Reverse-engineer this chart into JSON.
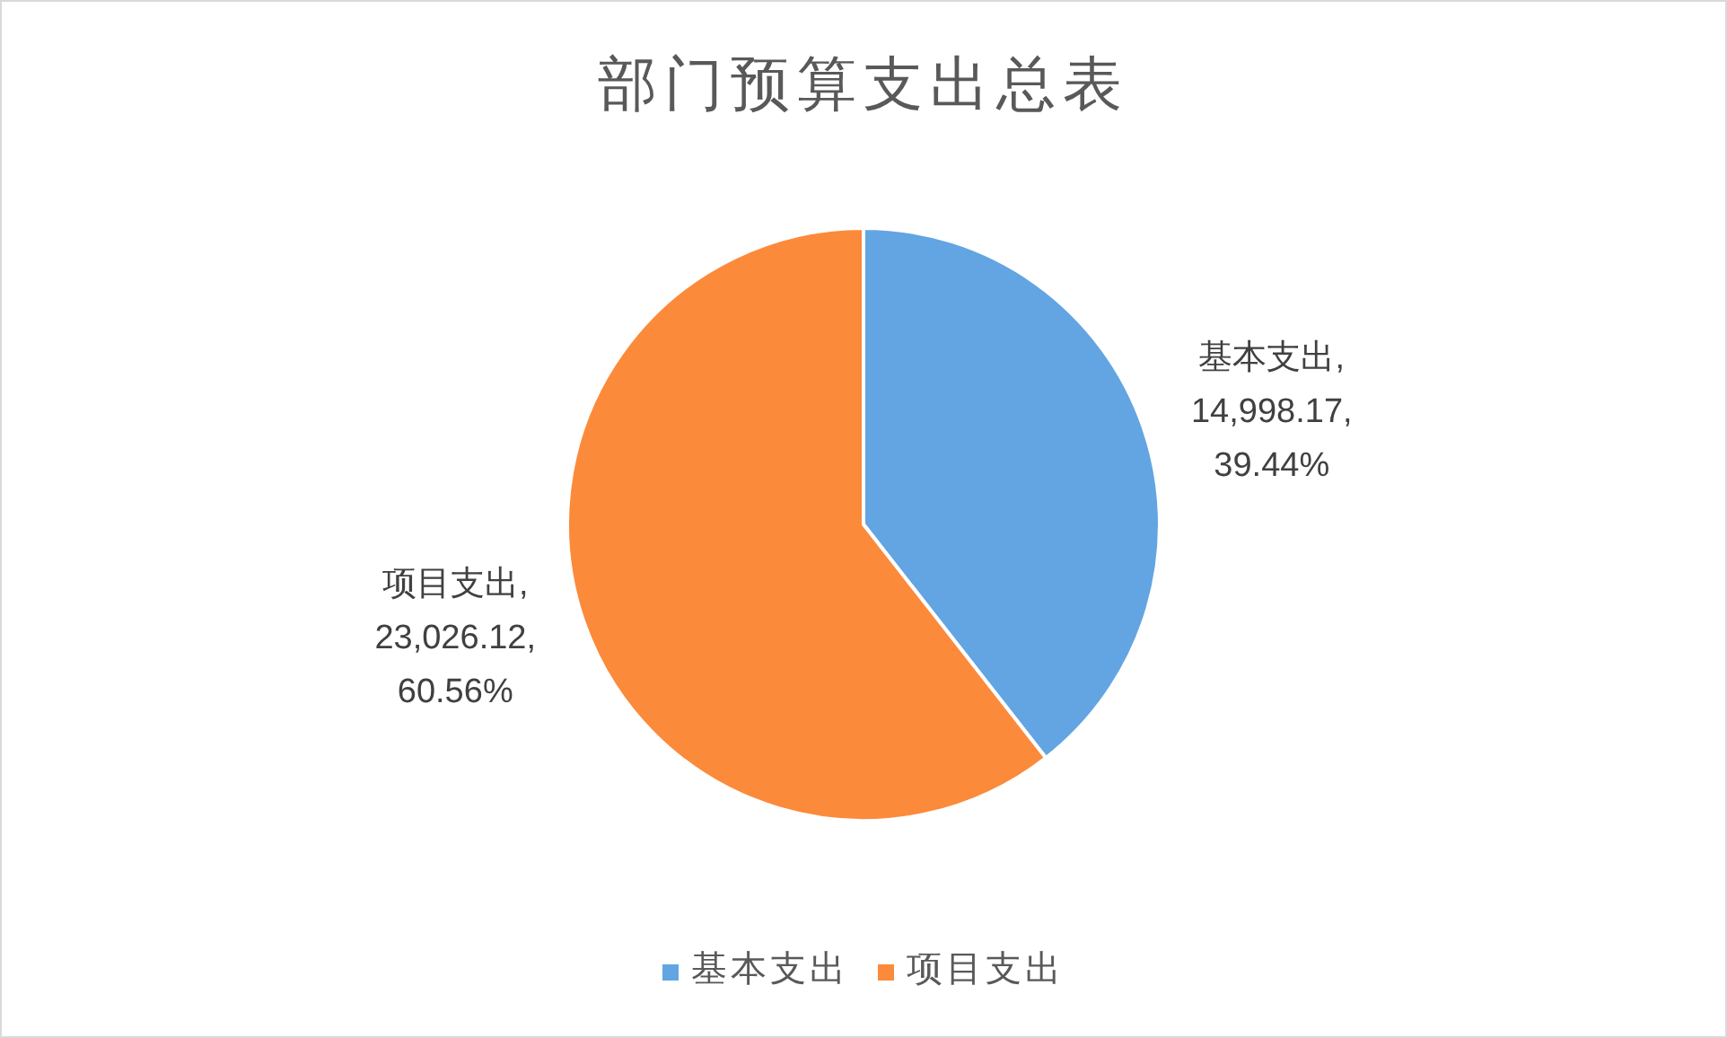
{
  "chart_data": {
    "type": "pie",
    "title": "部门预算支出总表",
    "categories": [
      "基本支出",
      "项目支出"
    ],
    "values": [
      14998.17,
      23026.12
    ],
    "colors": [
      "#63a5e2",
      "#fc8a3b"
    ],
    "value_labels": [
      "基本支出,\n14,998.17,\n39.44%",
      "项目支出,\n23,026.12,\n60.56%"
    ],
    "legend": "bottom"
  }
}
